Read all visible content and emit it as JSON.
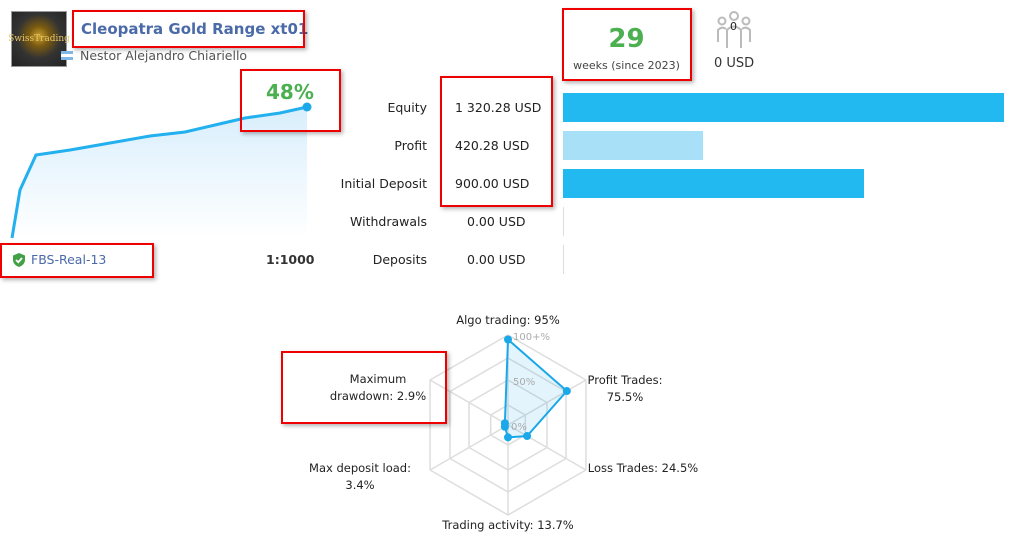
{
  "header": {
    "title": "Cleopatra Gold Range xt01",
    "author": "Nestor Alejandro Chiariello",
    "logo_text": "SwissTrading",
    "country_flag": "argentina-flag-icon"
  },
  "growth": {
    "value": "48%",
    "color": "#4caf50"
  },
  "account": {
    "broker": "FBS-Real-13",
    "leverage": "1:1000",
    "verified_icon": "shield-check-icon"
  },
  "weeks": {
    "count": "29",
    "label": "weeks (since 2023)"
  },
  "subscribers": {
    "count": "0",
    "price": "0 USD",
    "icon": "people-icon"
  },
  "stats": [
    {
      "label": "Equity",
      "value": "1 320.28 USD",
      "amount": 1320.28,
      "color": "#22b8f0"
    },
    {
      "label": "Profit",
      "value": "420.28 USD",
      "amount": 420.28,
      "color": "#a8e0f8"
    },
    {
      "label": "Initial Deposit",
      "value": "900.00 USD",
      "amount": 900.0,
      "color": "#22b8f0"
    },
    {
      "label": "Withdrawals",
      "value": "0.00 USD",
      "amount": 0
    },
    {
      "label": "Deposits",
      "value": "0.00 USD",
      "amount": 0
    }
  ],
  "radar": {
    "scale_labels": [
      "100+%",
      "50%",
      "0%"
    ],
    "axes": [
      {
        "label": "Algo trading: 95%",
        "value": 95
      },
      {
        "label": "Profit Trades: 75.5%",
        "value": 75.5
      },
      {
        "label": "Loss Trades: 24.5%",
        "value": 24.5
      },
      {
        "label": "Trading activity: 13.7%",
        "value": 13.7
      },
      {
        "label": "Max deposit load: 3.4%",
        "value": 3.4
      },
      {
        "label": "Maximum drawdown: 2.9%",
        "value": 2.9
      }
    ],
    "color": "#1aa8e8"
  }
}
